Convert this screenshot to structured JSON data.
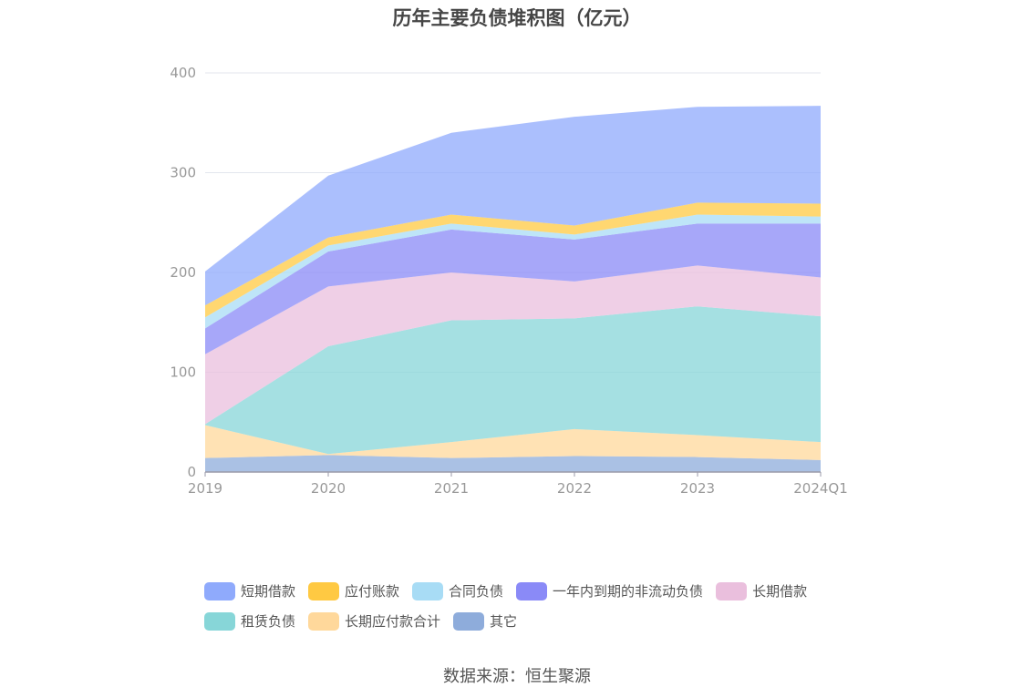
{
  "chart_data": {
    "type": "area",
    "stacked": true,
    "title": "历年主要负债堆积图（亿元）",
    "categories": [
      "2019",
      "2020",
      "2021",
      "2022",
      "2023",
      "2024Q1"
    ],
    "ylim": [
      0,
      400
    ],
    "yticks": [
      "0",
      "100",
      "200",
      "300",
      "400"
    ],
    "grid": true,
    "legend_position": "bottom",
    "series": [
      {
        "name": "其它",
        "color": "#8eacdb",
        "values": [
          14,
          17,
          14,
          16,
          15,
          12
        ]
      },
      {
        "name": "长期应付款合计",
        "color": "#ffd89b",
        "values": [
          33,
          1,
          16,
          27,
          22,
          18
        ]
      },
      {
        "name": "租赁负债",
        "color": "#87d6d8",
        "values": [
          1,
          108,
          122,
          111,
          129,
          126
        ]
      },
      {
        "name": "长期借款",
        "color": "#eabfdd",
        "values": [
          70,
          60,
          48,
          37,
          41,
          39
        ]
      },
      {
        "name": "一年内到期的非流动负债",
        "color": "#8a8af7",
        "values": [
          26,
          35,
          43,
          42,
          42,
          54
        ]
      },
      {
        "name": "合同负债",
        "color": "#a8dcf5",
        "values": [
          11,
          6,
          6,
          5,
          9,
          7
        ]
      },
      {
        "name": "应付账款",
        "color": "#ffc942",
        "values": [
          12,
          8,
          9,
          9,
          12,
          13
        ]
      },
      {
        "name": "短期借款",
        "color": "#8faafc",
        "values": [
          34,
          62,
          82,
          109,
          96,
          98
        ]
      }
    ],
    "legend_order": [
      "短期借款",
      "应付账款",
      "合同负债",
      "一年内到期的非流动负债",
      "长期借款",
      "租赁负债",
      "长期应付款合计",
      "其它"
    ]
  },
  "source": "数据来源：恒生聚源"
}
